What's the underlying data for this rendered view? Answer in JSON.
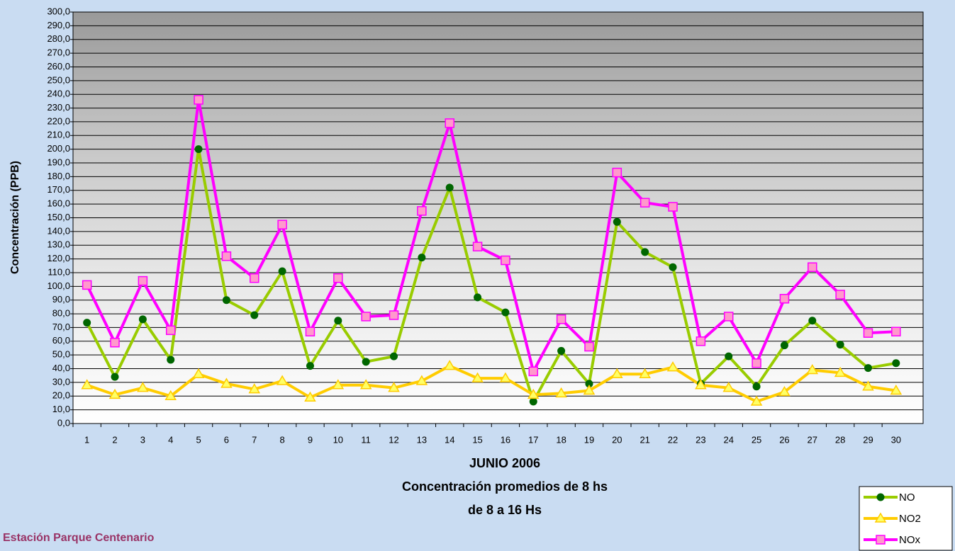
{
  "chart_data": {
    "type": "line",
    "y_label": "Concentración (PPB)",
    "x_title": [
      "JUNIO 2006",
      "Concentración promedios de 8 hs",
      "de 8 a 16 Hs"
    ],
    "footer": "Estación Parque Centenario",
    "categories": [
      "1",
      "2",
      "3",
      "4",
      "5",
      "6",
      "7",
      "8",
      "9",
      "10",
      "11",
      "12",
      "13",
      "14",
      "15",
      "16",
      "17",
      "18",
      "19",
      "20",
      "21",
      "22",
      "23",
      "24",
      "25",
      "26",
      "27",
      "28",
      "29",
      "30"
    ],
    "series": [
      {
        "name": "NO",
        "color": "#99cc00",
        "marker_color": "#006600",
        "marker": "circle",
        "values": [
          73.5,
          34,
          76,
          46.5,
          200,
          90,
          79,
          111,
          42,
          75,
          45,
          49,
          121,
          172,
          92,
          81,
          16,
          53,
          29,
          147,
          125,
          114,
          29,
          49,
          27,
          57,
          75,
          57.5,
          40.5,
          44
        ]
      },
      {
        "name": "NO2",
        "color": "#ffcc00",
        "marker_color": "#ffff66",
        "marker": "triangle",
        "values": [
          28,
          21,
          26,
          20,
          36,
          29,
          25,
          31,
          19,
          28,
          28,
          26,
          31,
          42,
          33,
          33,
          21,
          22,
          24,
          36,
          36,
          41,
          28,
          26,
          16,
          23,
          39,
          37,
          27,
          24
        ]
      },
      {
        "name": "NOx",
        "color": "#ff00ff",
        "marker_color": "#ff99cc",
        "marker": "square",
        "values": [
          101,
          59,
          104,
          68,
          236,
          122,
          106,
          145,
          67,
          106,
          78,
          79,
          155,
          219,
          129,
          119,
          38,
          76,
          56,
          183,
          161,
          158,
          60,
          78,
          44,
          91,
          114,
          94,
          66,
          67
        ]
      }
    ],
    "ylim": [
      0,
      300
    ],
    "yticks": [
      {
        "value": 0,
        "label": "0,0"
      },
      {
        "value": 10,
        "label": "10,0"
      },
      {
        "value": 20,
        "label": "20,0"
      },
      {
        "value": 30,
        "label": "30,0"
      },
      {
        "value": 40,
        "label": "40,0"
      },
      {
        "value": 50,
        "label": "50,0"
      },
      {
        "value": 60,
        "label": "60,0"
      },
      {
        "value": 70,
        "label": "70,0"
      },
      {
        "value": 80,
        "label": "80,0"
      },
      {
        "value": 90,
        "label": "90,0"
      },
      {
        "value": 100,
        "label": "100,0"
      },
      {
        "value": 110,
        "label": "110,0"
      },
      {
        "value": 120,
        "label": "120,0"
      },
      {
        "value": 130,
        "label": "130,0"
      },
      {
        "value": 140,
        "label": "140,0"
      },
      {
        "value": 150,
        "label": "150,0"
      },
      {
        "value": 160,
        "label": "160,0"
      },
      {
        "value": 170,
        "label": "170,0"
      },
      {
        "value": 180,
        "label": "180,0"
      },
      {
        "value": 190,
        "label": "190,0"
      },
      {
        "value": 200,
        "label": "200,0"
      },
      {
        "value": 210,
        "label": "210,0"
      },
      {
        "value": 220,
        "label": "220,0"
      },
      {
        "value": 230,
        "label": "230,0"
      },
      {
        "value": 240,
        "label": "240,0"
      },
      {
        "value": 250,
        "label": "250,0"
      },
      {
        "value": 260,
        "label": "260,0"
      },
      {
        "value": 270,
        "label": "270,0"
      },
      {
        "value": 280,
        "label": "280,0"
      },
      {
        "value": 290,
        "label": "290,0"
      },
      {
        "value": 300,
        "label": "300,0"
      }
    ],
    "grid": true,
    "legend": "lower right"
  }
}
